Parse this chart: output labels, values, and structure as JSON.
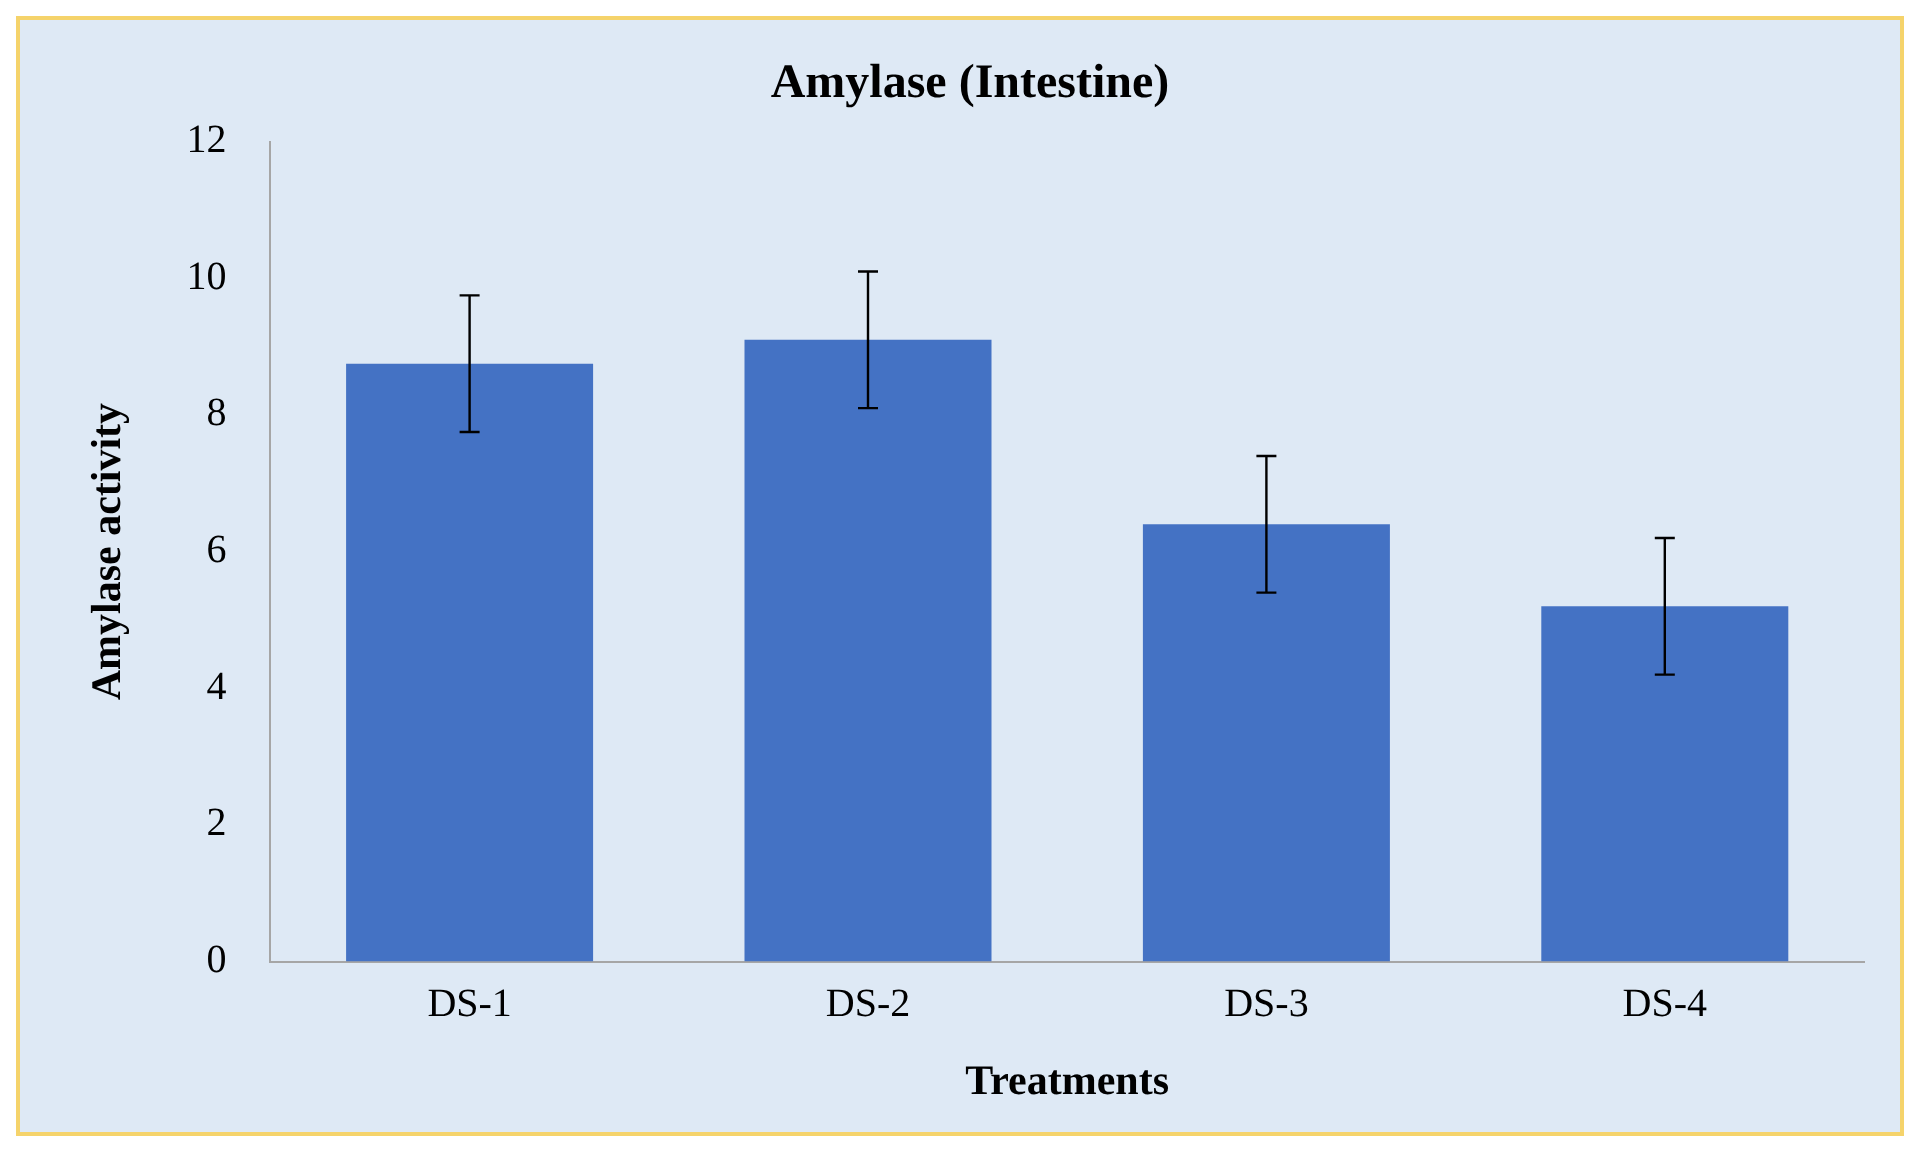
{
  "chart_data": {
    "type": "bar",
    "title": "Amylase (Intestine)",
    "xlabel": "Treatments",
    "ylabel": "Amylase activity",
    "categories": [
      "DS-1",
      "DS-2",
      "DS-3",
      "DS-4"
    ],
    "values": [
      8.75,
      9.1,
      6.4,
      5.2
    ],
    "errors": [
      1,
      1,
      1,
      1
    ],
    "color": "#4472c4",
    "ylim": [
      0,
      12
    ],
    "yticks": [
      0,
      2,
      4,
      6,
      8,
      10,
      12
    ],
    "grid": false,
    "legend": false
  }
}
